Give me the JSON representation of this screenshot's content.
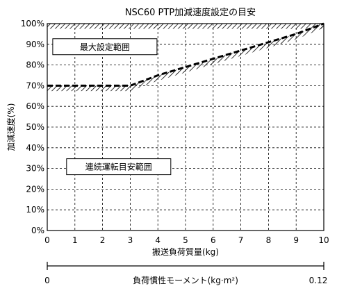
{
  "chart_data": {
    "type": "line",
    "title": "NSC60 PTP加減速度設定の目安",
    "xlabel": "搬送負荷質量(kg)",
    "ylabel": "加減速度(%)",
    "xlim": [
      0,
      10
    ],
    "ylim": [
      0,
      100
    ],
    "x_ticks": [
      "0",
      "1",
      "2",
      "3",
      "4",
      "5",
      "6",
      "7",
      "8",
      "9",
      "10"
    ],
    "y_ticks": [
      "0%",
      "10%",
      "20%",
      "30%",
      "40%",
      "50%",
      "60%",
      "70%",
      "80%",
      "90%",
      "100%"
    ],
    "grid": true,
    "series": [
      {
        "style": "dashed",
        "x": [
          0,
          3,
          4,
          5,
          6,
          7,
          8,
          9,
          10
        ],
        "y": [
          70,
          70,
          75,
          79,
          83,
          87,
          91,
          95,
          100
        ]
      }
    ],
    "regions": [
      {
        "label": "最大設定範囲",
        "x": 0.5,
        "y": 88
      },
      {
        "label": "連続運転目安範囲",
        "x": 1.0,
        "y": 30
      }
    ],
    "secondary_axis": {
      "label": "負荷慣性モーメント(kg·m²)",
      "min_label": "0",
      "max_label": "0.12",
      "range": [
        0,
        0.12
      ]
    }
  }
}
